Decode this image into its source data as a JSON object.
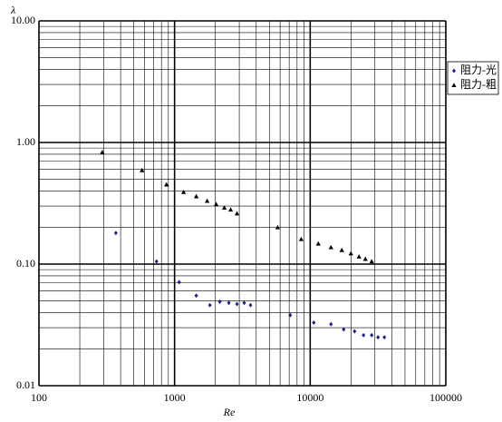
{
  "chart_data": {
    "type": "scatter",
    "x_label": "Re",
    "y_label": "λ",
    "xscale": "log",
    "yscale": "log",
    "xlim": [
      100,
      100000
    ],
    "ylim": [
      0.01,
      10
    ],
    "xticks": [
      100,
      1000,
      10000,
      100000
    ],
    "yticks": [
      {
        "value": 0.01,
        "label": "0.01"
      },
      {
        "value": 0.1,
        "label": "0.10"
      },
      {
        "value": 1,
        "label": "1.00"
      },
      {
        "value": 10,
        "label": "10.00"
      }
    ],
    "grid": true,
    "minor_grid": true,
    "legend": "right",
    "series": [
      {
        "name": "阻力-光",
        "color": "#1f1f8f",
        "marker": "diamond",
        "x": [
          369,
          736,
          1080,
          1445,
          1820,
          2155,
          2512,
          2884,
          3260,
          3630,
          7130,
          10630,
          14230,
          17650,
          21230,
          24730,
          28400,
          31620,
          35240
        ],
        "values": [
          0.18,
          0.105,
          0.071,
          0.055,
          0.046,
          0.049,
          0.048,
          0.047,
          0.048,
          0.046,
          0.038,
          0.033,
          0.032,
          0.029,
          0.028,
          0.026,
          0.026,
          0.025,
          0.025
        ]
      },
      {
        "name": "阻力-粗",
        "color": "#000000",
        "marker": "triangle",
        "x": [
          293,
          575,
          871,
          1166,
          1445,
          1738,
          2026,
          2328,
          2590,
          2884,
          5750,
          8580,
          11480,
          14230,
          17100,
          19950,
          22900,
          25500,
          28400
        ],
        "values": [
          0.83,
          0.59,
          0.45,
          0.39,
          0.36,
          0.33,
          0.31,
          0.29,
          0.28,
          0.26,
          0.2,
          0.16,
          0.147,
          0.137,
          0.13,
          0.122,
          0.115,
          0.11,
          0.105
        ]
      }
    ]
  }
}
